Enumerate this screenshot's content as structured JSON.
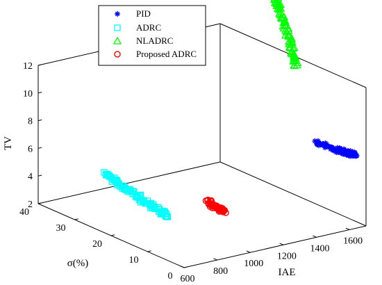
{
  "chart_data": {
    "type": "scatter",
    "dimensions": "3d",
    "title": "",
    "xlabel": "IAE",
    "ylabel": "σ(%)",
    "zlabel": "TV",
    "xlim": [
      600,
      1700
    ],
    "ylim": [
      0,
      40
    ],
    "zlim": [
      2,
      12
    ],
    "x_ticks": [
      "600",
      "800",
      "1000",
      "1200",
      "1400",
      "1600"
    ],
    "y_ticks": [
      "0",
      "10",
      "20",
      "30",
      "40"
    ],
    "z_ticks": [
      "2",
      "4",
      "6",
      "8",
      "10",
      "12"
    ],
    "grid": false,
    "box": true,
    "legend_position": "top-left",
    "series": [
      {
        "name": "PID",
        "marker": "asterisk",
        "color": "#0000ff",
        "x": [
          1490,
          1515,
          1540,
          1565,
          1590,
          1610,
          1625,
          1640,
          1650,
          1660,
          1665,
          1670
        ],
        "y": [
          4.0,
          3.6,
          3.2,
          2.9,
          2.6,
          2.4,
          2.2,
          2.1,
          2.0,
          1.9,
          1.8,
          1.8
        ],
        "z": [
          8.2,
          8.0,
          7.8,
          7.6,
          7.45,
          7.35,
          7.25,
          7.2,
          7.15,
          7.1,
          7.1,
          7.05
        ]
      },
      {
        "name": "ADRC",
        "marker": "square",
        "color": "#00ffff",
        "x": [
          800,
          805,
          810,
          815,
          820,
          825,
          830,
          835,
          840,
          845,
          850
        ],
        "y": [
          30.5,
          29.0,
          27.5,
          26.0,
          24.5,
          23.0,
          21.5,
          20.0,
          18.5,
          17.0,
          16.0
        ],
        "z": [
          4.7,
          4.5,
          4.35,
          4.2,
          4.05,
          3.9,
          3.75,
          3.6,
          3.45,
          3.3,
          3.2
        ]
      },
      {
        "name": "NLADRC",
        "marker": "triangle",
        "color": "#00ff00",
        "x": [
          1680,
          1684,
          1688,
          1692,
          1696,
          1700,
          1700,
          1700
        ],
        "y": [
          18.0,
          19.0,
          20.0,
          21.0,
          22.0,
          23.0,
          24.0,
          25.0
        ],
        "z": [
          11.6,
          12.2,
          12.8,
          13.4,
          14.0,
          14.6,
          15.2,
          15.6
        ]
      },
      {
        "name": "Proposed ADRC",
        "marker": "circle",
        "color": "#ff0000",
        "x": [
          1020,
          1030,
          1040,
          1050,
          1060,
          1070,
          1080
        ],
        "y": [
          12.5,
          12.2,
          11.9,
          11.6,
          11.3,
          11.0,
          10.8
        ],
        "z": [
          4.3,
          4.0,
          3.9,
          3.8,
          3.7,
          3.6,
          3.55
        ]
      }
    ]
  }
}
